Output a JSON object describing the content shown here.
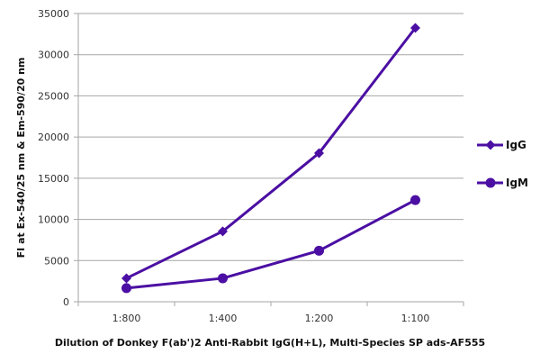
{
  "chart_data": {
    "type": "line",
    "title": "",
    "xlabel": "Dilution of Donkey F(ab')2 Anti-Rabbit IgG(H+L), Multi-Species SP ads-AF555",
    "ylabel": "FI at Ex-540/25 nm & Em-590/20 nm",
    "categories": [
      "1:800",
      "1:400",
      "1:200",
      "1:100"
    ],
    "ylim": [
      0,
      35000
    ],
    "yticks": [
      0,
      5000,
      10000,
      15000,
      20000,
      25000,
      30000,
      35000
    ],
    "grid": "horizontal",
    "legend_position": "right",
    "series": [
      {
        "name": "IgG",
        "marker": "diamond",
        "color": "#4b0fa3",
        "values": [
          2850,
          8550,
          18050,
          33250
        ]
      },
      {
        "name": "IgM",
        "marker": "circle",
        "color": "#4b0fa3",
        "values": [
          1650,
          2850,
          6200,
          12350
        ]
      }
    ]
  }
}
